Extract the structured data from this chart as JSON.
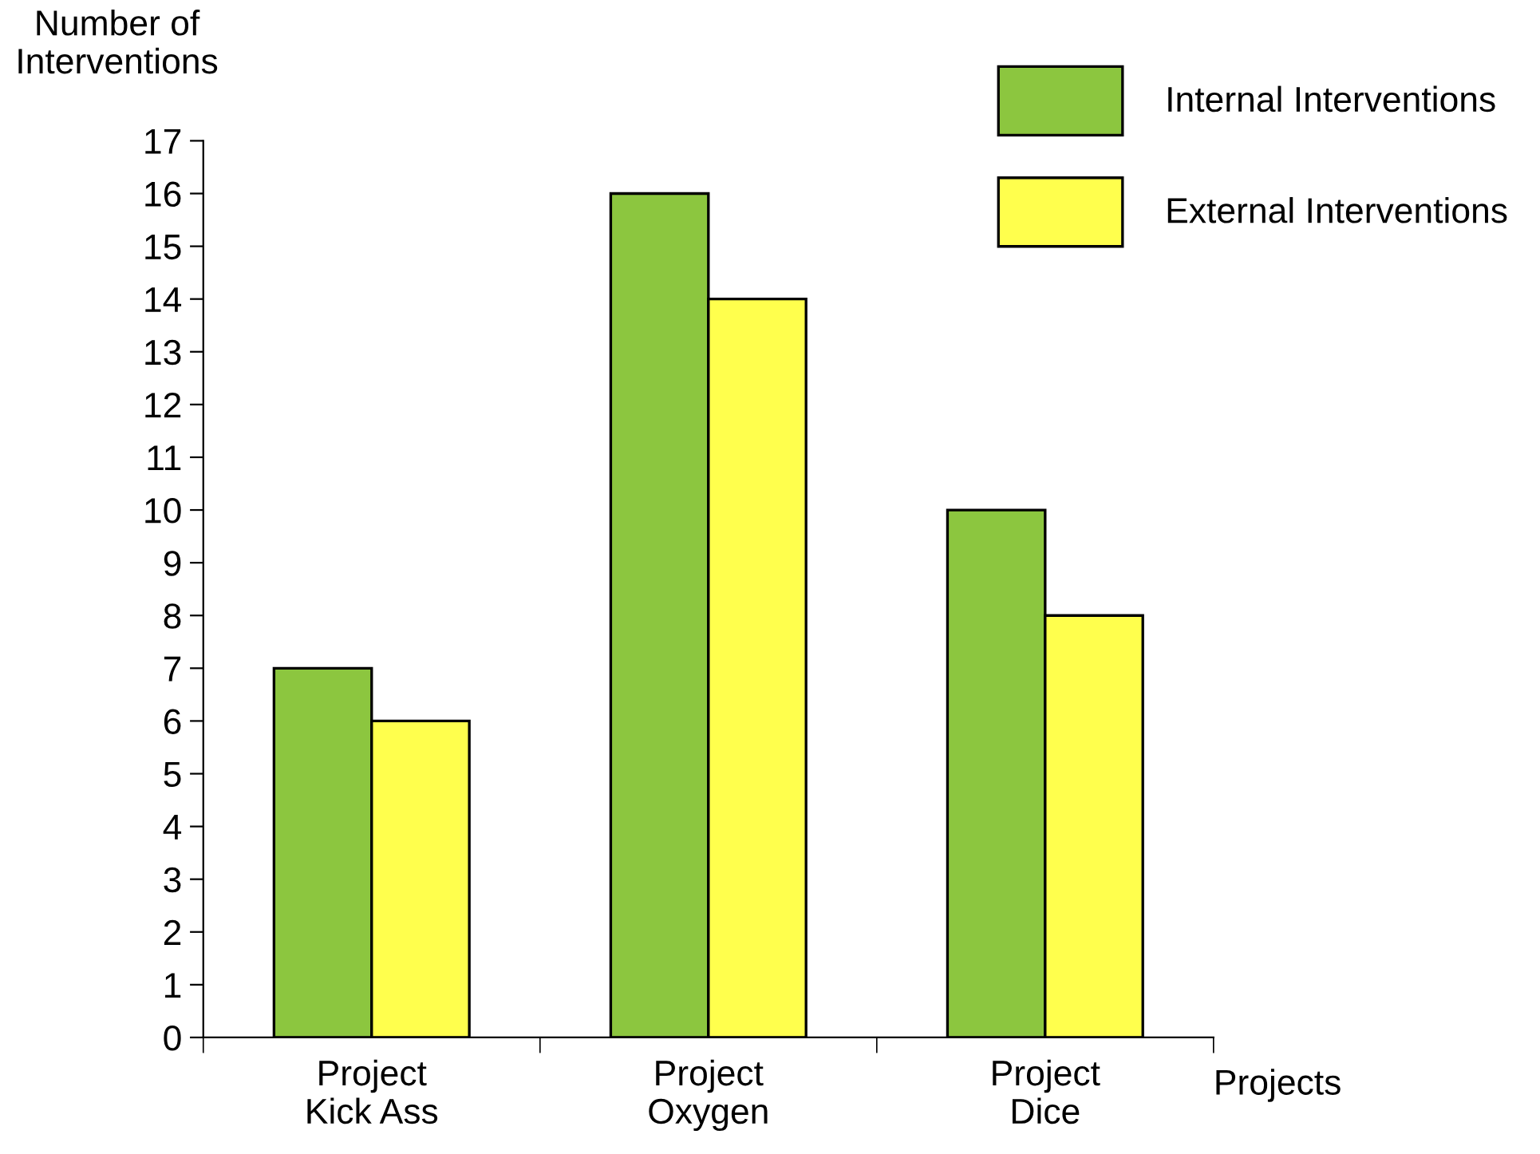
{
  "chart_data": {
    "type": "bar",
    "xlabel": "Projects",
    "ylabel": "Number of\nInterventions",
    "categories": [
      "Project\nKick Ass",
      "Project\nOxygen",
      "Project\nDice"
    ],
    "series": [
      {
        "name": "Internal Interventions",
        "color": "#8cc63f",
        "values": [
          7,
          16,
          10
        ]
      },
      {
        "name": "External Interventions",
        "color": "#ffff4d",
        "values": [
          6,
          14,
          8
        ]
      }
    ],
    "ylim": [
      0,
      17
    ],
    "yticks": [
      0,
      1,
      2,
      3,
      4,
      5,
      6,
      7,
      8,
      9,
      10,
      11,
      12,
      13,
      14,
      15,
      16,
      17
    ],
    "grid": false,
    "legend": "top right"
  }
}
